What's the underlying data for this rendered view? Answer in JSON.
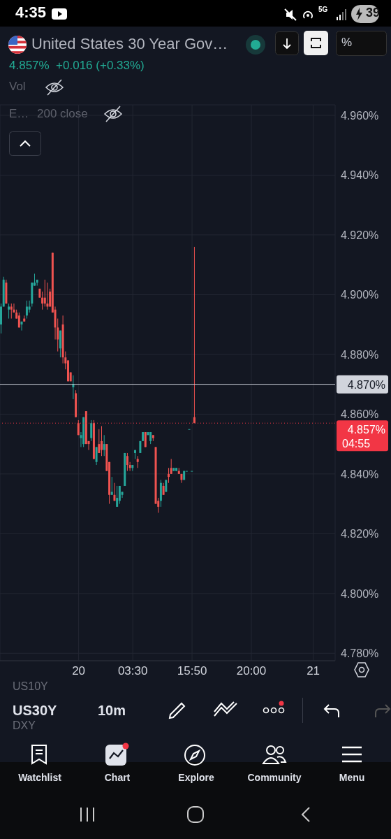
{
  "chart_data": {
    "type": "candlestick",
    "title": "United States 30 Year Gov…",
    "subtitle": "4.857%  +0.016 (+0.33%)",
    "categories": [
      null,
      null,
      null,
      null,
      null,
      null,
      null,
      null,
      null,
      null,
      null,
      null,
      null,
      null,
      null,
      null,
      null,
      null,
      null,
      null,
      null,
      null,
      null,
      null,
      null,
      null,
      null,
      null,
      null,
      null,
      "20",
      null,
      null,
      null,
      null,
      null,
      null,
      null,
      null,
      null,
      null,
      null,
      null,
      null,
      null,
      null,
      null,
      null,
      null,
      null,
      null,
      "03:30",
      null,
      null,
      null,
      null,
      null,
      null,
      null,
      null,
      null,
      null,
      null,
      null,
      null,
      null,
      null,
      null,
      null,
      null,
      null,
      null,
      null,
      null,
      "15:50",
      null,
      null,
      null,
      null,
      null,
      null,
      null,
      null,
      null,
      null,
      null,
      null,
      null,
      null,
      null,
      null,
      null,
      null,
      null,
      null,
      null,
      null,
      "20:00",
      null,
      null,
      null,
      null,
      null,
      null,
      null,
      null,
      null,
      null,
      null,
      null,
      null,
      null,
      null,
      null,
      null,
      null,
      null,
      null,
      null,
      null,
      null,
      "21",
      null,
      null,
      null,
      null,
      null,
      null,
      null,
      null
    ],
    "ohlc": [
      [
        4.89,
        4.897,
        4.887,
        4.896
      ],
      [
        4.896,
        4.906,
        4.896,
        4.905
      ],
      [
        4.904,
        4.905,
        4.897,
        4.897
      ],
      [
        4.895,
        4.897,
        4.892,
        4.896
      ],
      [
        4.896,
        4.897,
        4.892,
        4.895
      ],
      [
        4.895,
        4.897,
        4.894,
        4.894
      ],
      [
        4.894,
        4.895,
        4.892,
        4.892
      ],
      [
        4.893,
        4.894,
        4.889,
        4.889
      ],
      [
        4.89,
        4.891,
        4.888,
        4.891
      ],
      [
        4.892,
        4.893,
        4.891,
        4.891
      ],
      [
        4.893,
        4.898,
        4.892,
        4.896
      ],
      [
        4.895,
        4.898,
        4.894,
        4.896
      ],
      [
        4.897,
        4.904,
        4.896,
        4.904
      ],
      [
        4.903,
        4.907,
        4.903,
        4.904
      ],
      [
        4.904,
        4.905,
        4.903,
        4.905
      ],
      [
        4.902,
        4.902,
        4.899,
        4.899
      ],
      [
        4.899,
        4.901,
        4.895,
        4.897
      ],
      [
        4.899,
        4.905,
        4.896,
        4.897
      ],
      [
        4.897,
        4.904,
        4.895,
        4.896
      ],
      [
        4.901,
        4.902,
        4.896,
        4.896
      ],
      [
        4.914,
        4.914,
        4.894,
        4.894
      ],
      [
        4.895,
        4.896,
        4.885,
        4.889
      ],
      [
        4.889,
        4.892,
        4.881,
        4.885
      ],
      [
        4.882,
        4.888,
        4.879,
        4.888
      ],
      [
        4.89,
        4.893,
        4.877,
        4.879
      ],
      [
        4.879,
        4.881,
        4.875,
        4.877
      ],
      [
        4.878,
        4.878,
        4.871,
        4.871
      ],
      [
        4.874,
        4.874,
        4.871,
        4.871
      ],
      [
        4.869,
        4.873,
        4.865,
        4.87
      ],
      [
        4.867,
        4.868,
        4.859,
        4.859
      ],
      [
        4.857,
        4.858,
        4.853,
        4.853
      ],
      [
        4.852,
        4.854,
        4.849,
        4.853
      ],
      [
        4.85,
        4.859,
        4.849,
        4.859
      ],
      [
        4.861,
        4.861,
        4.85,
        4.85
      ],
      [
        4.851,
        4.851,
        4.848,
        4.85
      ],
      [
        4.852,
        4.858,
        4.851,
        4.857
      ],
      [
        4.857,
        4.858,
        4.845,
        4.845
      ],
      [
        4.844,
        4.849,
        4.843,
        4.849
      ],
      [
        4.85,
        4.855,
        4.847,
        4.847
      ],
      [
        4.851,
        4.856,
        4.846,
        4.848
      ],
      [
        4.848,
        4.853,
        4.846,
        4.85
      ],
      [
        4.85,
        4.85,
        4.841,
        4.841
      ],
      [
        4.844,
        4.844,
        4.83,
        4.833
      ],
      [
        4.833,
        4.839,
        4.833,
        4.834
      ],
      [
        4.833,
        4.837,
        4.831,
        4.831
      ],
      [
        4.829,
        4.836,
        4.829,
        4.832
      ],
      [
        4.831,
        4.836,
        4.83,
        4.836
      ],
      [
        4.833,
        4.834,
        4.832,
        4.834
      ],
      [
        4.836,
        4.847,
        4.836,
        4.847
      ],
      [
        4.846,
        4.847,
        4.841,
        4.843
      ],
      [
        4.843,
        4.844,
        4.841,
        4.842
      ],
      [
        4.842,
        4.843,
        4.841,
        4.843
      ],
      [
        4.847,
        4.848,
        4.845,
        4.848
      ],
      [
        4.845,
        4.846,
        4.842,
        4.844
      ],
      [
        4.847,
        4.851,
        4.847,
        4.851
      ],
      [
        4.851,
        4.854,
        4.851,
        4.854
      ],
      [
        4.854,
        4.854,
        4.849,
        4.849
      ],
      [
        4.853,
        4.854,
        4.853,
        4.854
      ],
      [
        4.851,
        4.854,
        4.85,
        4.854
      ],
      [
        4.853,
        4.853,
        4.851,
        4.852
      ],
      [
        4.849,
        4.849,
        4.83,
        4.83
      ],
      [
        4.831,
        4.832,
        4.827,
        4.829
      ],
      [
        4.831,
        4.838,
        4.829,
        4.837
      ],
      [
        4.836,
        4.837,
        4.833,
        4.833
      ],
      [
        4.834,
        4.838,
        4.834,
        4.838
      ],
      [
        4.84,
        4.842,
        4.837,
        4.839
      ],
      [
        4.842,
        4.845,
        4.84,
        4.84
      ],
      [
        4.841,
        4.842,
        4.841,
        4.842
      ],
      [
        4.841,
        4.842,
        4.841,
        4.842
      ],
      [
        4.841,
        4.842,
        4.84,
        4.84
      ],
      [
        4.84,
        4.84,
        4.837,
        4.838
      ],
      [
        4.838,
        4.841,
        4.838,
        4.841
      ],
      [
        4.841,
        4.841,
        4.841,
        4.841
      ],
      [
        4.855,
        4.855,
        4.855,
        4.855
      ],
      [
        4.841,
        4.841,
        4.841,
        4.841
      ],
      [
        4.859,
        4.916,
        4.857,
        4.857
      ],
      null,
      null,
      null,
      null,
      null,
      null,
      null,
      null,
      null,
      null,
      null,
      null,
      null,
      null,
      null,
      null,
      null,
      null,
      null,
      null,
      null,
      null,
      null,
      null,
      null,
      null,
      null,
      null,
      null,
      null,
      null,
      null,
      null,
      null,
      null,
      null,
      null,
      null,
      null,
      null,
      null,
      null,
      null,
      null,
      null,
      null,
      null,
      null,
      null,
      null,
      null,
      null,
      null,
      null
    ],
    "ylim": [
      4.7775,
      4.9635
    ],
    "yticks": [
      {
        "value": 4.78,
        "label": "4.780%"
      },
      {
        "value": 4.8,
        "label": "4.800%"
      },
      {
        "value": 4.82,
        "label": "4.820%"
      },
      {
        "value": 4.84,
        "label": "4.840%"
      },
      {
        "value": 4.86,
        "label": "4.860%"
      },
      {
        "value": 4.88,
        "label": "4.880%"
      },
      {
        "value": 4.9,
        "label": "4.900%"
      },
      {
        "value": 4.92,
        "label": "4.920%"
      },
      {
        "value": 4.94,
        "label": "4.940%"
      },
      {
        "value": 4.96,
        "label": "4.960%"
      }
    ],
    "grid": true,
    "ref_lines": [
      {
        "axis": "y",
        "value": 4.87,
        "label": "4.870%",
        "color": "#d1d4dc",
        "line_style": "solid"
      },
      {
        "axis": "y",
        "value": 4.857,
        "label": "4.857%",
        "color": "#f23645",
        "line_style": "dotted"
      }
    ],
    "annotations": [
      "4:35",
      "5G",
      "39",
      "Vol",
      "E…",
      "200 close",
      "%",
      "04:55",
      "US10Y",
      "US30Y",
      "10m",
      "DXY",
      "Watchlist",
      "Chart",
      "Explore",
      "Community",
      "Menu"
    ]
  }
}
